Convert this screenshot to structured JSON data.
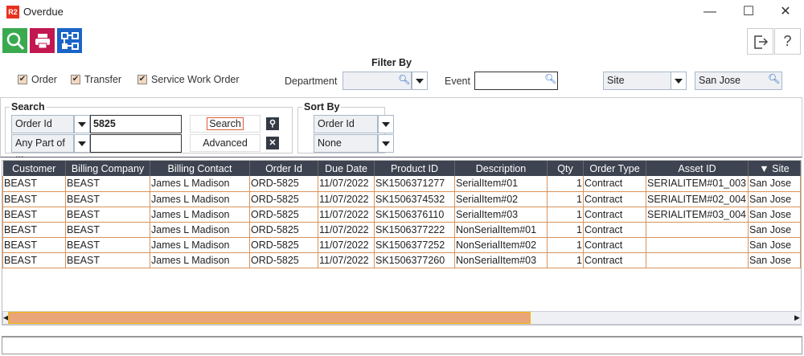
{
  "window": {
    "logo": "R2",
    "title": "Overdue",
    "minimize": "—",
    "maximize": "☐",
    "close": "✕"
  },
  "toolbar": {
    "search": "search-icon",
    "print": "print-icon",
    "hierarchy": "hierarchy-icon",
    "exit": "exit-icon",
    "help": "?"
  },
  "checkboxes": [
    {
      "label": "Order",
      "checked": true
    },
    {
      "label": "Transfer",
      "checked": true
    },
    {
      "label": "Service Work Order",
      "checked": true
    }
  ],
  "filter": {
    "title": "Filter By",
    "department_label": "Department",
    "department_value": "",
    "event_label": "Event",
    "event_value": "",
    "site_type": "Site",
    "site_value": "San Jose"
  },
  "search": {
    "title": "Search",
    "field1": "Order Id",
    "value1": "5825",
    "field2": "Any Part of ...",
    "value2": "",
    "search_button": "Search",
    "advanced_button": "Advanced"
  },
  "sort": {
    "title": "Sort By",
    "first": "Order Id",
    "second": "None"
  },
  "table": {
    "columns": [
      "Customer",
      "Billing Company",
      "Billing Contact",
      "Order Id",
      "Due Date",
      "Product ID",
      "Description",
      "Qty",
      "Order Type",
      "Asset ID",
      "Site"
    ],
    "sorted_column": "Site",
    "rows": [
      [
        "BEAST",
        "BEAST",
        "James L Madison",
        "ORD-5825",
        "11/07/2022",
        "SK1506371277",
        "SerialItem#01",
        "1",
        "Contract",
        "SERIALITEM#01_003",
        "San Jose"
      ],
      [
        "BEAST",
        "BEAST",
        "James L Madison",
        "ORD-5825",
        "11/07/2022",
        "SK1506374532",
        "SerialItem#02",
        "1",
        "Contract",
        "SERIALITEM#02_004",
        "San Jose"
      ],
      [
        "BEAST",
        "BEAST",
        "James L Madison",
        "ORD-5825",
        "11/07/2022",
        "SK1506376110",
        "SerialItem#03",
        "1",
        "Contract",
        "SERIALITEM#03_004",
        "San Jose"
      ],
      [
        "BEAST",
        "BEAST",
        "James L Madison",
        "ORD-5825",
        "11/07/2022",
        "SK1506377222",
        "NonSerialItem#01",
        "1",
        "Contract",
        "",
        "San Jose"
      ],
      [
        "BEAST",
        "BEAST",
        "James L Madison",
        "ORD-5825",
        "11/07/2022",
        "SK1506377252",
        "NonSerialItem#02",
        "1",
        "Contract",
        "",
        "San Jose"
      ],
      [
        "BEAST",
        "BEAST",
        "James L Madison",
        "ORD-5825",
        "11/07/2022",
        "SK1506377260",
        "NonSerialItem#03",
        "1",
        "Contract",
        "",
        "San Jose"
      ]
    ]
  },
  "colors": {
    "accent": "#e89a6a",
    "header": "#3d4350",
    "row_border": "#d9935a"
  }
}
